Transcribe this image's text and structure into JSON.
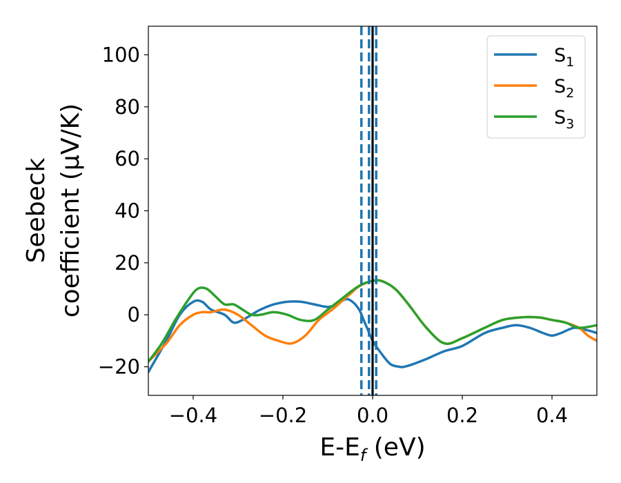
{
  "chart_data": {
    "type": "line",
    "xlabel": "E-E",
    "xlabel_sub": "f",
    "xlabel_unit": " (eV)",
    "ylabel_line1": "Seebeck",
    "ylabel_line2": "coefficient  (μV/K)",
    "xlim": [
      -0.5,
      0.5
    ],
    "ylim": [
      -31,
      111
    ],
    "xticks": [
      -0.4,
      -0.2,
      0.0,
      0.2,
      0.4
    ],
    "xtick_labels": [
      "−0.4",
      "−0.2",
      "0.0",
      "0.2",
      "0.4"
    ],
    "yticks": [
      -20,
      0,
      20,
      40,
      60,
      80,
      100
    ],
    "ytick_labels": [
      "−20",
      "0",
      "20",
      "40",
      "60",
      "80",
      "100"
    ],
    "legend_placement": "top-right",
    "grid": false,
    "vlines": [
      {
        "x": -0.025,
        "style": "dashed",
        "color": "#1f77b4"
      },
      {
        "x": -0.008,
        "style": "dashed",
        "color": "#1f77b4"
      },
      {
        "x": 0.008,
        "style": "dashed",
        "color": "#1f77b4"
      },
      {
        "x": 0.0,
        "style": "solid",
        "color": "#000000"
      }
    ],
    "series": [
      {
        "name": "S",
        "sub": "1",
        "color": "#1f77b4",
        "x": [
          -0.5,
          -0.46,
          -0.43,
          -0.4,
          -0.38,
          -0.36,
          -0.33,
          -0.31,
          -0.29,
          -0.27,
          -0.25,
          -0.22,
          -0.19,
          -0.16,
          -0.13,
          -0.1,
          -0.08,
          -0.06,
          -0.045,
          -0.03,
          -0.02,
          -0.01,
          0.0,
          0.02,
          0.04,
          0.06,
          0.07,
          0.09,
          0.12,
          0.16,
          0.2,
          0.25,
          0.29,
          0.32,
          0.35,
          0.38,
          0.4,
          0.42,
          0.45,
          0.48,
          0.5
        ],
        "y": [
          -22,
          -10,
          0,
          5,
          5,
          2,
          0,
          -3,
          -2,
          0,
          2,
          4,
          5,
          5,
          4,
          3,
          4,
          6,
          5,
          2,
          -2,
          -6,
          -10,
          -15,
          -19,
          -20,
          -20,
          -19,
          -17,
          -14,
          -12,
          -7,
          -5,
          -4,
          -5,
          -7,
          -8,
          -7,
          -5,
          -6,
          -7
        ]
      },
      {
        "name": "S",
        "sub": "2",
        "color": "#ff7f0e",
        "x": [
          -0.5,
          -0.46,
          -0.43,
          -0.4,
          -0.38,
          -0.36,
          -0.33,
          -0.3,
          -0.27,
          -0.24,
          -0.21,
          -0.18,
          -0.15,
          -0.12,
          -0.09,
          -0.07,
          -0.05,
          -0.03,
          0.0,
          0.02,
          0.05,
          0.08,
          0.12,
          0.16,
          0.2,
          0.25,
          0.29,
          0.33,
          0.37,
          0.4,
          0.43,
          0.46,
          0.48,
          0.5
        ],
        "y": [
          -18,
          -11,
          -4,
          0,
          1,
          1,
          2,
          0,
          -4,
          -8,
          -10,
          -11,
          -8,
          -2,
          2,
          5,
          8,
          11,
          13,
          13,
          10,
          4,
          -5,
          -11,
          -9,
          -5,
          -2,
          -1,
          -1,
          -2,
          -3,
          -5,
          -8,
          -10
        ]
      },
      {
        "name": "S",
        "sub": "3",
        "color": "#2ca02c",
        "x": [
          -0.5,
          -0.47,
          -0.44,
          -0.41,
          -0.39,
          -0.37,
          -0.35,
          -0.33,
          -0.31,
          -0.29,
          -0.27,
          -0.25,
          -0.22,
          -0.19,
          -0.16,
          -0.13,
          -0.1,
          -0.07,
          -0.04,
          -0.02,
          0.0,
          0.02,
          0.05,
          0.08,
          0.12,
          0.16,
          0.2,
          0.25,
          0.29,
          0.33,
          0.37,
          0.4,
          0.43,
          0.46,
          0.5
        ],
        "y": [
          -18,
          -11,
          -2,
          6,
          10,
          10,
          7,
          4,
          4,
          2,
          0,
          0,
          1,
          0,
          -2,
          -2,
          2,
          6,
          10,
          12,
          13,
          13,
          10,
          4,
          -5,
          -11,
          -9,
          -5,
          -2,
          -1,
          -1,
          -2,
          -3,
          -5,
          -4
        ]
      }
    ]
  }
}
